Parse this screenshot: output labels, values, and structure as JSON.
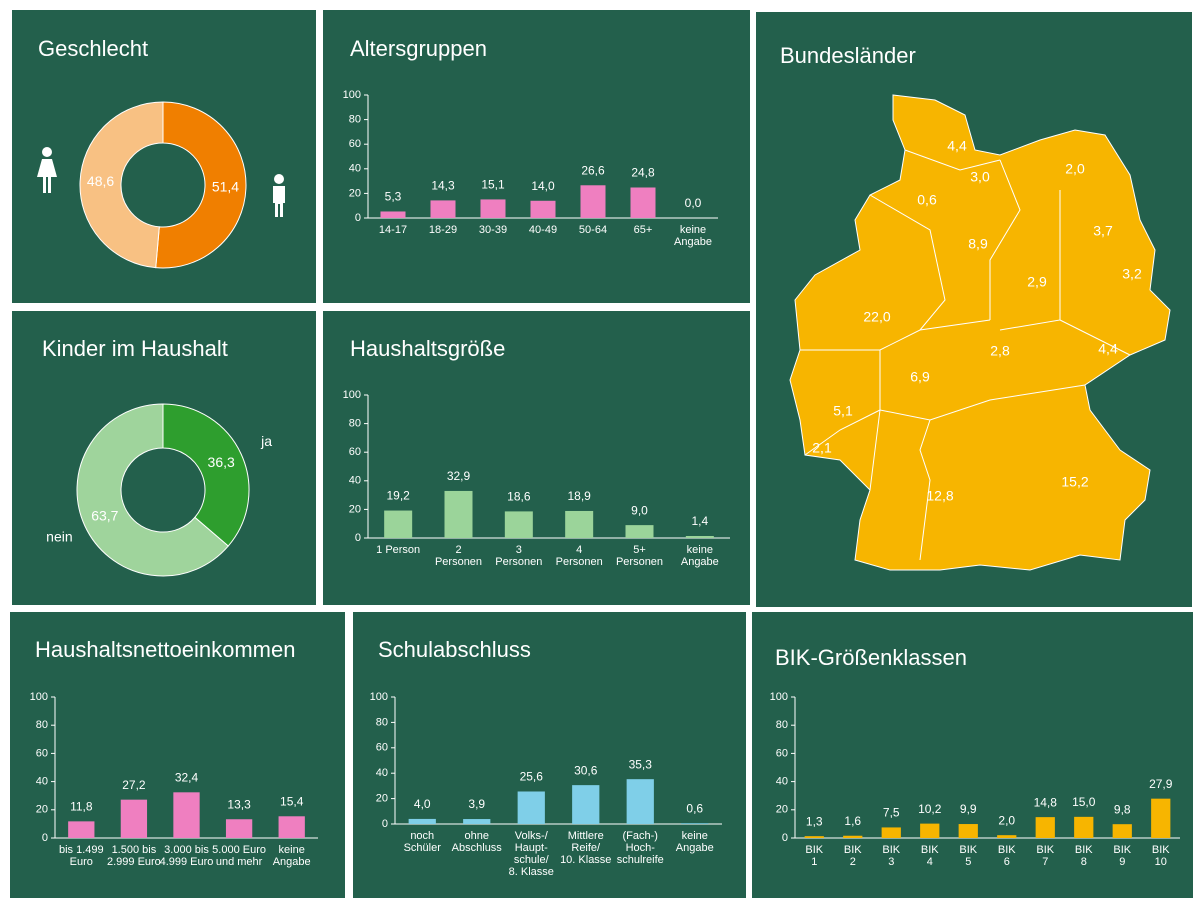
{
  "chart_data": [
    {
      "type": "donut",
      "title": "Geschlecht",
      "values": [
        51.4,
        48.6
      ],
      "value_labels": [
        "51,4",
        "48,6"
      ],
      "colors": [
        "#f07f00",
        "#f8c183"
      ]
    },
    {
      "type": "bar",
      "title": "Altersgruppen",
      "categories": [
        "14-17",
        "18-29",
        "30-39",
        "40-49",
        "50-64",
        "65+",
        "keine\nAngabe"
      ],
      "values": [
        5.3,
        14.3,
        15.1,
        14.0,
        26.6,
        24.8,
        0.0
      ],
      "value_labels": [
        "5,3",
        "14,3",
        "15,1",
        "14,0",
        "26,6",
        "24,8",
        "0,0"
      ],
      "color": "#ef7fc0",
      "ylim": [
        0,
        100
      ],
      "yticks": [
        0,
        20,
        40,
        60,
        80,
        100
      ]
    },
    {
      "type": "map",
      "title": "Bundesländer",
      "values": [
        4.4,
        3.0,
        2.0,
        0.6,
        8.9,
        3.7,
        3.2,
        2.9,
        22.0,
        2.8,
        4.4,
        6.9,
        5.1,
        2.1,
        12.8,
        15.2
      ],
      "value_labels": [
        "4,4",
        "3,0",
        "2,0",
        "0,6",
        "8,9",
        "3,7",
        "3,2",
        "2,9",
        "22,0",
        "2,8",
        "4,4",
        "6,9",
        "5,1",
        "2,1",
        "12,8",
        "15,2"
      ],
      "color": "#f7b500"
    },
    {
      "type": "donut",
      "title": "Kinder im Haushalt",
      "categories": [
        "ja",
        "nein"
      ],
      "values": [
        36.3,
        63.7
      ],
      "value_labels": [
        "36,3",
        "63,7"
      ],
      "colors": [
        "#2e9e2e",
        "#9fd49c"
      ]
    },
    {
      "type": "bar",
      "title": "Haushaltsgröße",
      "categories": [
        "1 Person",
        "2\nPersonen",
        "3\nPersonen",
        "4\nPersonen",
        "5+\nPersonen",
        "keine\nAngabe"
      ],
      "values": [
        19.2,
        32.9,
        18.6,
        18.9,
        9.0,
        1.4
      ],
      "value_labels": [
        "19,2",
        "32,9",
        "18,6",
        "18,9",
        "9,0",
        "1,4"
      ],
      "color": "#9bd49a",
      "ylim": [
        0,
        100
      ],
      "yticks": [
        0,
        20,
        40,
        60,
        80,
        100
      ]
    },
    {
      "type": "bar",
      "title": "Haushaltsnettoeinkommen",
      "categories": [
        "bis 1.499\nEuro",
        "1.500 bis\n2.999 Euro",
        "3.000 bis\n4.999 Euro",
        "5.000 Euro\nund mehr",
        "keine\nAngabe"
      ],
      "values": [
        11.8,
        27.2,
        32.4,
        13.3,
        15.4
      ],
      "value_labels": [
        "11,8",
        "27,2",
        "32,4",
        "13,3",
        "15,4"
      ],
      "color": "#ef7fc0",
      "ylim": [
        0,
        100
      ],
      "yticks": [
        0,
        20,
        40,
        60,
        80,
        100
      ]
    },
    {
      "type": "bar",
      "title": "Schulabschluss",
      "categories": [
        "noch\nSchüler",
        "ohne\nAbschluss",
        "Volks-/\nHaupt-\nschule/\n8. Klasse",
        "Mittlere\nReife/\n10. Klasse",
        "(Fach-)\nHoch-\nschulreife",
        "keine\nAngabe"
      ],
      "values": [
        4.0,
        3.9,
        25.6,
        30.6,
        35.3,
        0.6
      ],
      "value_labels": [
        "4,0",
        "3,9",
        "25,6",
        "30,6",
        "35,3",
        "0,6"
      ],
      "color": "#7fcfe8",
      "ylim": [
        0,
        100
      ],
      "yticks": [
        0,
        20,
        40,
        60,
        80,
        100
      ]
    },
    {
      "type": "bar",
      "title": "BIK-Größenklassen",
      "categories": [
        "BIK\n1",
        "BIK\n2",
        "BIK\n3",
        "BIK\n4",
        "BIK\n5",
        "BIK\n6",
        "BIK\n7",
        "BIK\n8",
        "BIK\n9",
        "BIK\n10"
      ],
      "values": [
        1.3,
        1.6,
        7.5,
        10.2,
        9.9,
        2.0,
        14.8,
        15.0,
        9.8,
        27.9
      ],
      "value_labels": [
        "1,3",
        "1,6",
        "7,5",
        "10,2",
        "9,9",
        "2,0",
        "14,8",
        "15,0",
        "9,8",
        "27,9"
      ],
      "color": "#f7b500",
      "ylim": [
        0,
        100
      ],
      "yticks": [
        0,
        20,
        40,
        60,
        80,
        100
      ]
    }
  ]
}
